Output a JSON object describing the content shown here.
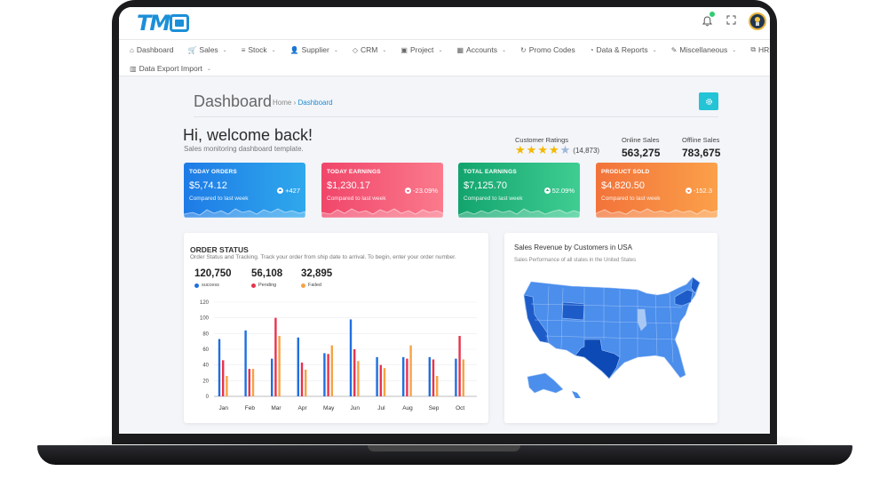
{
  "logo": {
    "text": "TM"
  },
  "nav": {
    "row1": [
      {
        "label": "Dashboard",
        "icon": "dashboard-icon",
        "glyph": "⌂",
        "caret": false
      },
      {
        "label": "Sales",
        "icon": "cart-icon",
        "glyph": "🛒",
        "caret": true
      },
      {
        "label": "Stock",
        "icon": "list-icon",
        "glyph": "≡",
        "caret": true
      },
      {
        "label": "Supplier",
        "icon": "user-icon",
        "glyph": "👤",
        "caret": true
      },
      {
        "label": "CRM",
        "icon": "diamond-icon",
        "glyph": "◇",
        "caret": true
      },
      {
        "label": "Project",
        "icon": "briefcase-icon",
        "glyph": "▣",
        "caret": true
      },
      {
        "label": "Accounts",
        "icon": "calculator-icon",
        "glyph": "▦",
        "caret": true
      },
      {
        "label": "Promo Codes",
        "icon": "refresh-icon",
        "glyph": "↻",
        "caret": false
      },
      {
        "label": "Data & Reports",
        "icon": "pie-chart-icon",
        "glyph": "◔",
        "caret": true
      },
      {
        "label": "Miscellaneous",
        "icon": "edit-icon",
        "glyph": "✎",
        "caret": true
      },
      {
        "label": "HRM",
        "icon": "external-link-icon",
        "glyph": "⧉",
        "caret": true
      }
    ],
    "row2": [
      {
        "label": "Data Export Import",
        "icon": "bar-chart-icon",
        "glyph": "▥",
        "caret": true
      }
    ]
  },
  "page": {
    "title": "Dashboard",
    "breadcrumb_home": "Home",
    "breadcrumb_sep": "›",
    "breadcrumb_current": "Dashboard"
  },
  "welcome": {
    "title": "Hi, welcome back!",
    "subtitle": "Sales monitoring dashboard template."
  },
  "ratings": {
    "label": "Customer Ratings",
    "count": "(14,873)",
    "stars": 4.5
  },
  "online_sales": {
    "label": "Online Sales",
    "value": "563,275"
  },
  "offline_sales": {
    "label": "Offline Sales",
    "value": "783,675"
  },
  "kpis": [
    {
      "title": "TODAY ORDERS",
      "value": "$5,74.12",
      "sub": "Compared to last week",
      "change": "+427",
      "up": true,
      "from": "#1e7be6",
      "to": "#2fa8ec"
    },
    {
      "title": "TODAY EARNINGS",
      "value": "$1,230.17",
      "sub": "Compared to last week",
      "change": "-23.09%",
      "up": false,
      "from": "#f0466a",
      "to": "#fb7a8c"
    },
    {
      "title": "TOTAL EARNINGS",
      "value": "$7,125.70",
      "sub": "Compared to last week",
      "change": "52.09%",
      "up": true,
      "from": "#13a46e",
      "to": "#3fcd92"
    },
    {
      "title": "PRODUCT SOLD",
      "value": "$4,820.50",
      "sub": "Compared to last week",
      "change": "-152.3",
      "up": false,
      "from": "#f2733a",
      "to": "#fba04a"
    }
  ],
  "order_status": {
    "title": "ORDER STATUS",
    "subtitle": "Order Status and Tracking. Track your order from ship date to arrival. To begin, enter your order number.",
    "stats": [
      {
        "value": "120,750",
        "label": "success",
        "color": "#1f6fe0"
      },
      {
        "value": "56,108",
        "label": "Pending",
        "color": "#e8334d"
      },
      {
        "value": "32,895",
        "label": "Failed",
        "color": "#f6a345"
      }
    ]
  },
  "chart_data": {
    "type": "bar",
    "categories": [
      "Jan",
      "Feb",
      "Mar",
      "Apr",
      "May",
      "Jun",
      "Jul",
      "Aug",
      "Sep",
      "Oct"
    ],
    "ylim": [
      0,
      120
    ],
    "yticks": [
      0,
      20,
      40,
      60,
      80,
      100,
      120
    ],
    "series": [
      {
        "name": "success",
        "color": "#1f6fe0",
        "values": [
          73,
          84,
          48,
          75,
          55,
          98,
          50,
          50,
          50,
          48
        ]
      },
      {
        "name": "Pending",
        "color": "#e8334d",
        "values": [
          46,
          35,
          100,
          43,
          54,
          60,
          40,
          48,
          47,
          77
        ]
      },
      {
        "name": "Failed",
        "color": "#f6a345",
        "values": [
          26,
          35,
          77,
          34,
          65,
          45,
          36,
          65,
          26,
          47
        ]
      }
    ]
  },
  "map_panel": {
    "title": "Sales Revenue by Customers in USA",
    "subtitle": "Sales Performance of all states in the United States"
  }
}
